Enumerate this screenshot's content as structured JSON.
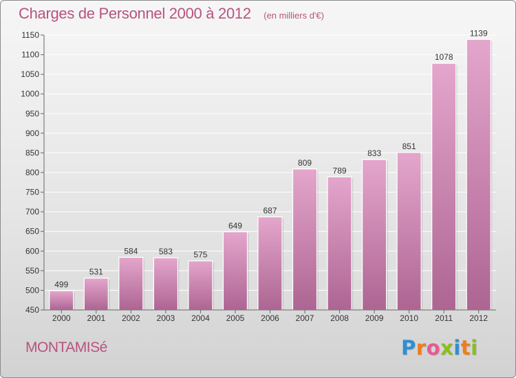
{
  "chart_data": {
    "type": "bar",
    "title": "Charges de Personnel 2000 à 2012",
    "subtitle": "(en milliers d'€)",
    "categories": [
      "2000",
      "2001",
      "2002",
      "2003",
      "2004",
      "2005",
      "2006",
      "2007",
      "2008",
      "2009",
      "2010",
      "2011",
      "2012"
    ],
    "values": [
      499,
      531,
      584,
      583,
      575,
      649,
      687,
      809,
      789,
      833,
      851,
      1078,
      1139
    ],
    "ylim": [
      450,
      1150
    ],
    "yticks": [
      450,
      500,
      550,
      600,
      650,
      700,
      750,
      800,
      850,
      900,
      950,
      1000,
      1050,
      1100,
      1150
    ],
    "grid": true,
    "bar_color": "#d98fba"
  },
  "footer": {
    "town": "MONTAMISé",
    "logo": {
      "text": "Proxiti",
      "letters": [
        {
          "char": "P",
          "color": "#2e8fd1"
        },
        {
          "char": "r",
          "color": "#f07d1a"
        },
        {
          "char": "o",
          "color": "#e85a94"
        },
        {
          "char": "x",
          "color": "#8dbd1f"
        },
        {
          "char": "i",
          "color": "#2e8fd1"
        },
        {
          "char": "t",
          "color": "#f07d1a"
        },
        {
          "char": "i",
          "color": "#8dbd1f"
        }
      ]
    }
  }
}
